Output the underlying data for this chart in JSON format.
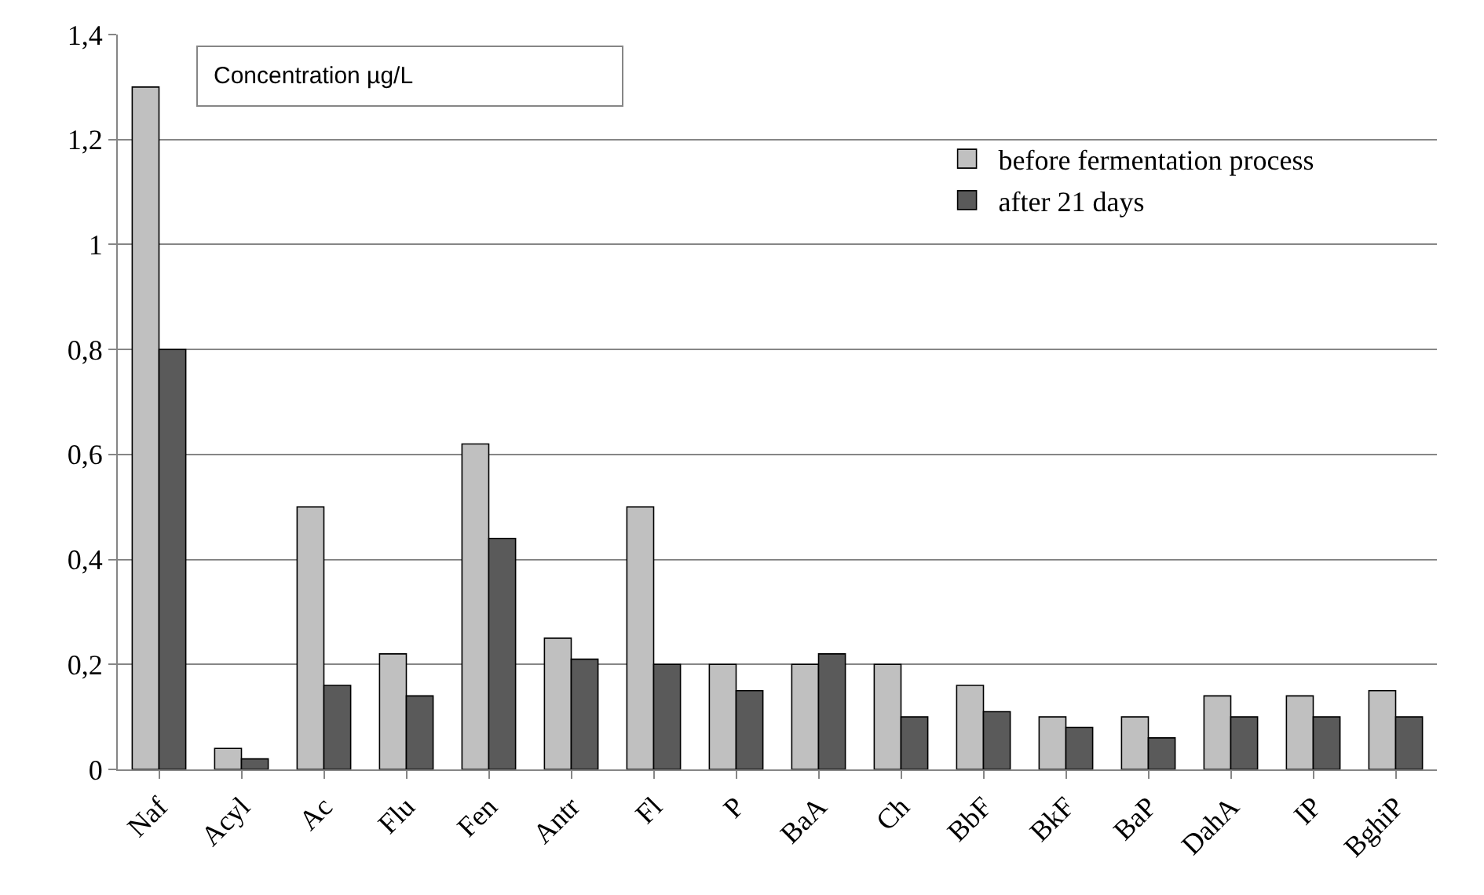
{
  "chart_data": {
    "type": "bar",
    "categories": [
      "Naf",
      "Acyl",
      "Ac",
      "Flu",
      "Fen",
      "Antr",
      "Fl",
      "P",
      "BaA",
      "Ch",
      "BbF",
      "BkF",
      "BaP",
      "DahA",
      "IP",
      "BghiP"
    ],
    "series": [
      {
        "name": "before fermentation process",
        "color": "#c0c0c0",
        "values": [
          1.3,
          0.04,
          0.5,
          0.22,
          0.62,
          0.25,
          0.5,
          0.2,
          0.2,
          0.2,
          0.16,
          0.1,
          0.1,
          0.14,
          0.14,
          0.15
        ]
      },
      {
        "name": "after 21 days",
        "color": "#5a5a5a",
        "values": [
          0.8,
          0.02,
          0.16,
          0.14,
          0.44,
          0.21,
          0.2,
          0.15,
          0.22,
          0.1,
          0.11,
          0.08,
          0.06,
          0.1,
          0.1,
          0.1
        ]
      }
    ],
    "annotations": [
      "Concentration µg/L"
    ],
    "ylim": [
      0,
      1.4
    ],
    "yticks": [
      {
        "value": 0,
        "label": "0"
      },
      {
        "value": 0.2,
        "label": "0,2"
      },
      {
        "value": 0.4,
        "label": "0,4"
      },
      {
        "value": 0.6,
        "label": "0,6"
      },
      {
        "value": 0.8,
        "label": "0,8"
      },
      {
        "value": 1,
        "label": "1"
      },
      {
        "value": 1.2,
        "label": "1,2"
      },
      {
        "value": 1.4,
        "label": "1,4"
      }
    ],
    "grid": "y",
    "legend": "top right"
  }
}
